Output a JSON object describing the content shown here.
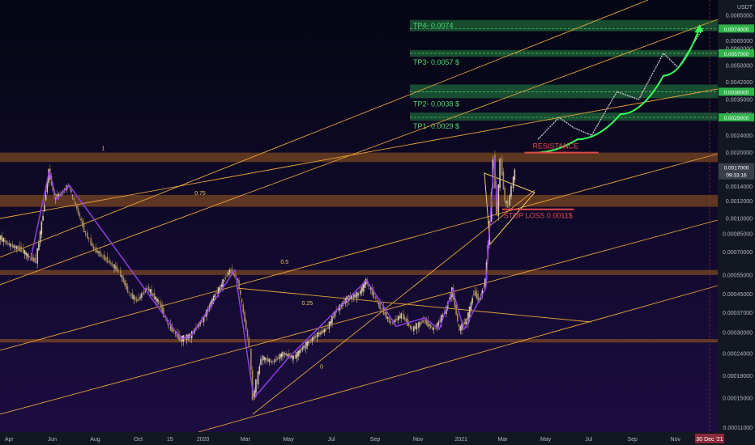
{
  "colors": {
    "bg_top": "#040613",
    "bg_bottom": "#1c0d40",
    "orange": "#e8a23a",
    "band_fill": "#a05c1f",
    "green_band": "#1f6b3a",
    "green_label_bg": "#2fb34a",
    "green_text": "#4fd66a",
    "resistance": "#e04848",
    "purple": "#9b3df0",
    "candle_up": "#d8c8a8",
    "candle_down": "#a68a54",
    "axis_text": "#b2b5be",
    "current_price_bg": "#3a3f4a",
    "date_bg": "#8a2a3a"
  },
  "chart_data": {
    "type": "candlestick",
    "title": "",
    "y_axis_unit": "USDT",
    "y_scale": "log",
    "ylim": [
      0.000105,
      0.01
    ],
    "x_range": [
      "2019-03-19",
      "2021-12-31"
    ],
    "x_tick_labels": [
      "Apr",
      "Jun",
      "Aug",
      "Oct",
      "15",
      "2020",
      "Mar",
      "May",
      "Jul",
      "Sep",
      "Nov",
      "2021",
      "Mar",
      "May",
      "Jul",
      "Sep",
      "Nov"
    ],
    "x_tick_dates": [
      "2019-04-01",
      "2019-06-01",
      "2019-08-01",
      "2019-10-01",
      "2019-11-15",
      "2020-01-01",
      "2020-03-01",
      "2020-05-01",
      "2020-07-01",
      "2020-09-01",
      "2020-11-01",
      "2021-01-01",
      "2021-03-01",
      "2021-05-01",
      "2021-07-01",
      "2021-09-01",
      "2021-11-01"
    ],
    "y_tick_labels": [
      "0.0090000",
      "0.0085000",
      "0.0065000",
      "0.0060000",
      "0.0050000",
      "0.0042000",
      "0.0035000",
      "0.0030000",
      "0.0024000",
      "0.0020000",
      "0.0014000",
      "0.0012000",
      "0.0010000",
      "0.00085000",
      "0.00070000",
      "0.00055000",
      "0.00045000",
      "0.00037000",
      "0.00030000",
      "0.00024000",
      "0.00019000",
      "0.00015000",
      "0.00011000"
    ],
    "price_path": [
      [
        "2019-03-19",
        0.00082
      ],
      [
        "2019-04-05",
        0.00075
      ],
      [
        "2019-04-20",
        0.00072
      ],
      [
        "2019-05-01",
        0.00066
      ],
      [
        "2019-05-10",
        0.00064
      ],
      [
        "2019-05-20",
        0.00105
      ],
      [
        "2019-05-28",
        0.00165
      ],
      [
        "2019-06-05",
        0.00125
      ],
      [
        "2019-06-15",
        0.0013
      ],
      [
        "2019-06-25",
        0.00142
      ],
      [
        "2019-07-05",
        0.00115
      ],
      [
        "2019-07-20",
        0.00085
      ],
      [
        "2019-08-01",
        0.00072
      ],
      [
        "2019-08-20",
        0.00064
      ],
      [
        "2019-09-05",
        0.00057
      ],
      [
        "2019-09-20",
        0.00045
      ],
      [
        "2019-10-01",
        0.00042
      ],
      [
        "2019-10-15",
        0.00048
      ],
      [
        "2019-11-01",
        0.00041
      ],
      [
        "2019-11-15",
        0.00032
      ],
      [
        "2019-12-01",
        0.00028
      ],
      [
        "2019-12-15",
        0.00029
      ],
      [
        "2020-01-01",
        0.00034
      ],
      [
        "2020-01-20",
        0.00045
      ],
      [
        "2020-02-10",
        0.00058
      ],
      [
        "2020-02-20",
        0.00052
      ],
      [
        "2020-03-01",
        0.00034
      ],
      [
        "2020-03-08",
        0.00026
      ],
      [
        "2020-03-13",
        0.00015
      ],
      [
        "2020-03-25",
        0.00023
      ],
      [
        "2020-04-10",
        0.00022
      ],
      [
        "2020-04-25",
        0.00024
      ],
      [
        "2020-05-10",
        0.00023
      ],
      [
        "2020-05-25",
        0.00026
      ],
      [
        "2020-06-10",
        0.00029
      ],
      [
        "2020-06-25",
        0.00031
      ],
      [
        "2020-07-10",
        0.00038
      ],
      [
        "2020-07-25",
        0.00043
      ],
      [
        "2020-08-10",
        0.00045
      ],
      [
        "2020-08-20",
        0.00052
      ],
      [
        "2020-09-01",
        0.00044
      ],
      [
        "2020-09-10",
        0.00039
      ],
      [
        "2020-09-25",
        0.00033
      ],
      [
        "2020-10-10",
        0.00036
      ],
      [
        "2020-10-25",
        0.00031
      ],
      [
        "2020-11-10",
        0.00034
      ],
      [
        "2020-11-25",
        0.00031
      ],
      [
        "2020-12-10",
        0.00037
      ],
      [
        "2020-12-20",
        0.00047
      ],
      [
        "2020-12-30",
        0.00031
      ],
      [
        "2021-01-10",
        0.00034
      ],
      [
        "2021-01-20",
        0.00046
      ],
      [
        "2021-01-28",
        0.00042
      ],
      [
        "2021-02-05",
        0.00052
      ],
      [
        "2021-02-12",
        0.00095
      ],
      [
        "2021-02-17",
        0.0019
      ],
      [
        "2021-02-22",
        0.00105
      ],
      [
        "2021-02-27",
        0.00185
      ],
      [
        "2021-03-05",
        0.0012
      ],
      [
        "2021-03-10",
        0.00115
      ],
      [
        "2021-03-15",
        0.0014
      ],
      [
        "2021-03-19",
        0.00165
      ]
    ],
    "projection_path": [
      [
        "2021-04-20",
        0.0023
      ],
      [
        "2021-05-20",
        0.0029
      ],
      [
        "2021-06-10",
        0.0026
      ],
      [
        "2021-07-05",
        0.0024
      ],
      [
        "2021-08-10",
        0.0038
      ],
      [
        "2021-09-10",
        0.0035
      ],
      [
        "2021-10-15",
        0.0057
      ],
      [
        "2021-11-05",
        0.0049
      ],
      [
        "2021-12-10",
        0.0074
      ]
    ],
    "forecast_arrow": [
      [
        "2021-04-15",
        0.002
      ],
      [
        "2021-06-15",
        0.0023
      ],
      [
        "2021-08-15",
        0.003
      ],
      [
        "2021-10-15",
        0.0045
      ],
      [
        "2021-12-05",
        0.0074
      ]
    ],
    "purple_swings": [
      [
        "2019-05-01",
        0.00064
      ],
      [
        "2019-05-28",
        0.00165
      ],
      [
        "2019-06-07",
        0.00122
      ],
      [
        "2019-06-25",
        0.00142
      ],
      [
        "2019-12-01",
        0.00028
      ],
      [
        "2019-12-15",
        0.00029
      ],
      [
        "2020-02-15",
        0.00058
      ],
      [
        "2020-03-13",
        0.00015
      ],
      [
        "2020-05-01",
        0.00023
      ],
      [
        "2020-08-20",
        0.00052
      ],
      [
        "2020-10-01",
        0.00032
      ],
      [
        "2020-11-10",
        0.00035
      ],
      [
        "2020-12-01",
        0.00031
      ],
      [
        "2020-12-20",
        0.00047
      ],
      [
        "2021-01-05",
        0.00031
      ],
      [
        "2021-02-05",
        0.00048
      ],
      [
        "2021-02-17",
        0.0019
      ],
      [
        "2021-02-22",
        0.00105
      ]
    ],
    "horizontal_bands": [
      {
        "from": 0.00181,
        "to": 0.002
      },
      {
        "from": 0.00113,
        "to": 0.00128
      },
      {
        "from": 0.00055,
        "to": 0.00058
      },
      {
        "from": 0.00027,
        "to": 0.00028
      }
    ],
    "fib_labels": [
      {
        "text": "1",
        "date": "2019-08-10",
        "price": 0.00205
      },
      {
        "text": "0.75",
        "date": "2019-12-20",
        "price": 0.00128
      },
      {
        "text": "0.5",
        "date": "2020-04-20",
        "price": 0.00062
      },
      {
        "text": "0.25",
        "date": "2020-05-20",
        "price": 0.0004
      },
      {
        "text": "0",
        "date": "2020-06-15",
        "price": 0.000205
      }
    ],
    "take_profits": [
      {
        "label": "TP4- 0.0074",
        "price": 0.0074,
        "axis": "0.0074000",
        "band": [
          0.0072,
          0.0081
        ],
        "label_below": false
      },
      {
        "label": "TP3- 0.0057 $",
        "price": 0.0057,
        "axis": "0.0057000",
        "band": [
          0.0055,
          0.0059
        ],
        "label_below": true
      },
      {
        "label": "TP2- 0.0038 $",
        "price": 0.0038,
        "axis": "0.0038000",
        "band": [
          0.00355,
          0.0041
        ],
        "label_below": true
      },
      {
        "label": "TP1- 0.0029 $",
        "price": 0.0029,
        "axis": "0.0029000",
        "band": [
          0.0028,
          0.00305
        ],
        "label_below": true
      }
    ],
    "resistance": {
      "label": "RESISTANCE",
      "price": 0.002,
      "from": "2021-04-01",
      "to": "2021-07-15"
    },
    "stop_loss": {
      "label": "STOP LOSS 0.0011$",
      "price": 0.0011,
      "from": "2021-02-28",
      "to": "2021-06-10"
    },
    "current_price": {
      "value": "0.0017000",
      "time": "09:33:16"
    },
    "current_date_label": "30 Dec '21"
  }
}
